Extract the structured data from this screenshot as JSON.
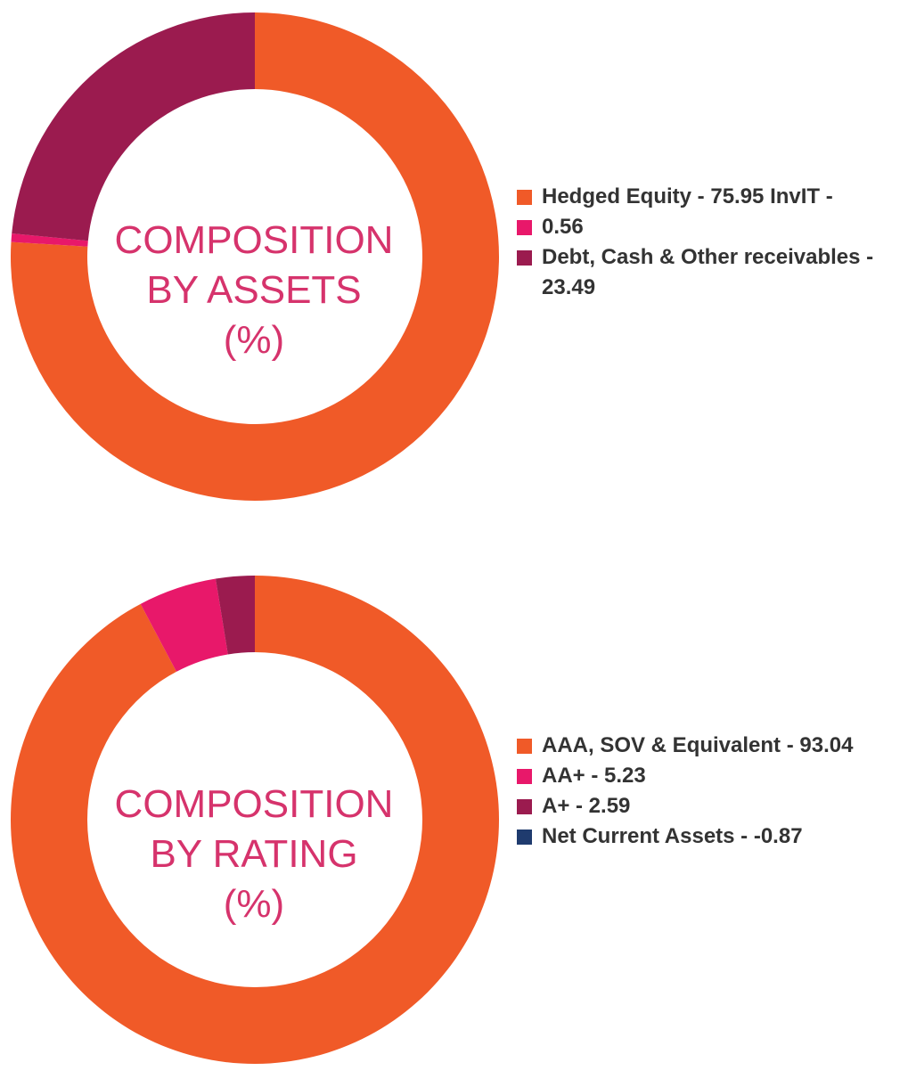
{
  "chart_data": [
    {
      "type": "pie",
      "center_label": [
        "COMPOSITION",
        "BY ASSETS",
        "(%)"
      ],
      "slices": [
        {
          "label": "Hedged Equity - 75.95",
          "value": 75.95,
          "color": "#f05a28"
        },
        {
          "label": "InvIT - 0.56",
          "value": 0.56,
          "color": "#e8186a"
        },
        {
          "label": "Debt, Cash & Other receivables - 23.49",
          "value": 23.49,
          "color": "#9b1b4f"
        }
      ],
      "legend_lines": [
        {
          "text": "Hedged Equity - 75.95 InvIT -",
          "color": "#f05a28"
        },
        {
          "text": "0.56",
          "color": "#e8186a"
        },
        {
          "text": "Debt, Cash & Other receivables - 23.49",
          "color": "#9b1b4f"
        }
      ],
      "legend_placement": "right"
    },
    {
      "type": "pie",
      "center_label": [
        "COMPOSITION",
        "BY RATING",
        "(%)"
      ],
      "slices": [
        {
          "label": "AAA, SOV & Equivalent - 93.04",
          "value": 93.04,
          "color": "#f05a28"
        },
        {
          "label": "AA+ - 5.23",
          "value": 5.23,
          "color": "#e8186a"
        },
        {
          "label": "A+ - 2.59",
          "value": 2.59,
          "color": "#9b1b4f"
        },
        {
          "label": "Net Current Assets - -0.87",
          "value": -0.87,
          "color": "#1f3b6e"
        }
      ],
      "legend_lines": [
        {
          "text": "AAA, SOV & Equivalent - 93.04",
          "color": "#f05a28"
        },
        {
          "text": "AA+ - 5.23",
          "color": "#e8186a"
        },
        {
          "text": "A+ - 2.59",
          "color": "#9b1b4f"
        },
        {
          "text": "Net Current Assets - -0.87",
          "color": "#1f3b6e"
        }
      ],
      "legend_placement": "right"
    }
  ]
}
